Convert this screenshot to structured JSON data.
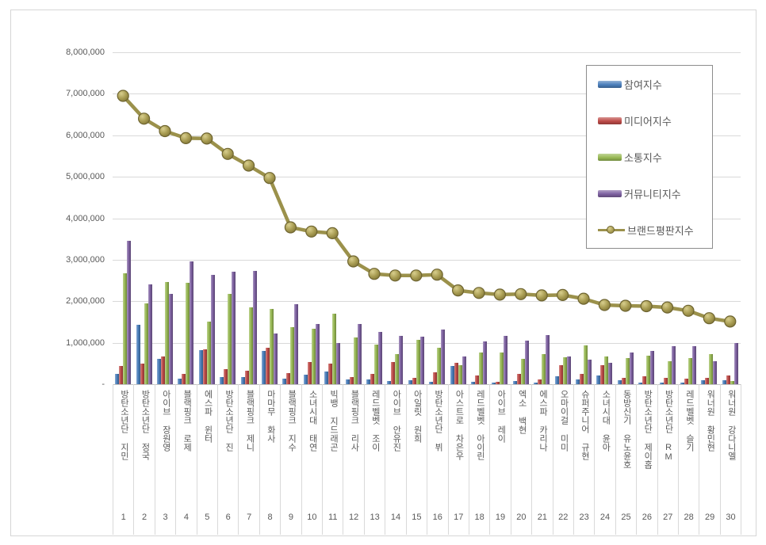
{
  "chart_data": {
    "type": "bar",
    "title": "",
    "categories": [
      "방탄소년단 지민",
      "방탄소년단 정국",
      "아이브 장원영",
      "블랙핑크 로제",
      "에스파 윈터",
      "방탄소년단 진",
      "블랙핑크 제니",
      "마마무 화사",
      "블랙핑크 지수",
      "소녀시대 태연",
      "빅뱅 지드래곤",
      "블랙핑크 리사",
      "레드벨벳 조이",
      "아이브 안유진",
      "아일릿 원희",
      "방탄소년단 뷔",
      "아스트로 차은우",
      "레드벨벳 아이린",
      "아이브 레이",
      "엑소 백현",
      "에스파 카리나",
      "오마이걸 미미",
      "슈퍼주니어 규현",
      "소녀시대 윤아",
      "동방신기 유노윤호",
      "방탄소년단 제이홉",
      "방탄소년단 RM",
      "레드벨벳 슬기",
      "워너원 황민현",
      "워너원 강다니엘"
    ],
    "ranks": [
      "1",
      "2",
      "3",
      "4",
      "5",
      "6",
      "7",
      "8",
      "9",
      "10",
      "11",
      "12",
      "13",
      "14",
      "15",
      "16",
      "17",
      "18",
      "19",
      "20",
      "21",
      "22",
      "23",
      "24",
      "25",
      "26",
      "27",
      "28",
      "29",
      "30"
    ],
    "series": [
      {
        "name": "참여지수",
        "key": "participation",
        "render": "bar",
        "color": "#4a7ebb",
        "values": [
          250000,
          1430000,
          620000,
          140000,
          830000,
          170000,
          180000,
          800000,
          140000,
          220000,
          310000,
          110000,
          120000,
          70000,
          90000,
          50000,
          430000,
          50000,
          30000,
          80000,
          40000,
          190000,
          120000,
          210000,
          100000,
          40000,
          30000,
          30000,
          100000,
          100000
        ]
      },
      {
        "name": "미디어지수",
        "key": "media",
        "render": "bar",
        "color": "#be4b48",
        "values": [
          430000,
          500000,
          670000,
          240000,
          840000,
          360000,
          330000,
          880000,
          260000,
          530000,
          500000,
          180000,
          250000,
          530000,
          160000,
          290000,
          510000,
          210000,
          50000,
          250000,
          110000,
          450000,
          240000,
          460000,
          160000,
          190000,
          160000,
          140000,
          160000,
          210000
        ]
      },
      {
        "name": "소통지수",
        "key": "communication",
        "render": "bar",
        "color": "#98b954",
        "values": [
          2670000,
          1950000,
          2460000,
          2450000,
          1500000,
          2180000,
          1850000,
          1810000,
          1370000,
          1330000,
          1700000,
          1120000,
          950000,
          720000,
          1070000,
          880000,
          460000,
          770000,
          770000,
          610000,
          730000,
          640000,
          940000,
          660000,
          630000,
          680000,
          560000,
          630000,
          730000,
          70000
        ]
      },
      {
        "name": "커뮤니티지수",
        "key": "community",
        "render": "bar",
        "color": "#7d60a0",
        "values": [
          3450000,
          2400000,
          2180000,
          2960000,
          2640000,
          2720000,
          2730000,
          1230000,
          1920000,
          1450000,
          1000000,
          1450000,
          1260000,
          1170000,
          1150000,
          1310000,
          660000,
          1040000,
          1160000,
          1050000,
          1180000,
          660000,
          600000,
          510000,
          760000,
          810000,
          920000,
          920000,
          560000,
          1000000
        ]
      },
      {
        "name": "브랜드평판지수",
        "key": "brand-reputation",
        "render": "line",
        "color": "#9b914b",
        "values": [
          6950000,
          6400000,
          6100000,
          5930000,
          5920000,
          5550000,
          5270000,
          4970000,
          3780000,
          3680000,
          3640000,
          2960000,
          2660000,
          2620000,
          2620000,
          2640000,
          2260000,
          2200000,
          2160000,
          2170000,
          2140000,
          2150000,
          2060000,
          1910000,
          1890000,
          1880000,
          1850000,
          1770000,
          1590000,
          1510000
        ]
      }
    ],
    "y_axis": {
      "min": 0,
      "max": 8000000,
      "step": 1000000,
      "labels": [
        "8,000,000",
        "7,000,000",
        "6,000,000",
        "5,000,000",
        "4,000,000",
        "3,000,000",
        "2,000,000",
        "1,000,000",
        "-"
      ]
    },
    "grid": true,
    "legend_position": "top-right"
  }
}
